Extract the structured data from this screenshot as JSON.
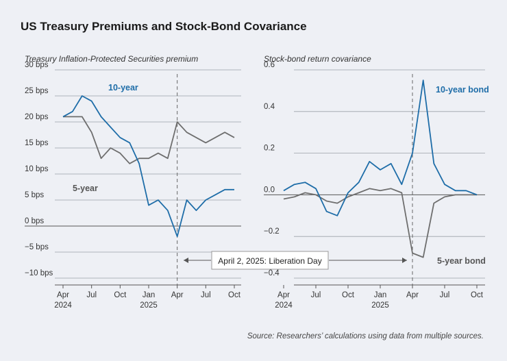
{
  "title": "US Treasury Premiums and Stock-Bond Covariance",
  "source": "Source: Researchers’ calculations using data from multiple sources.",
  "annotation": "April 2, 2025: Liberation Day",
  "colors": {
    "ten_year": "#1e6da8",
    "five_year": "#6e6e6e",
    "background": "#eef0f5"
  },
  "chart_data": [
    {
      "type": "line",
      "title": "Treasury Inflation-Protected Securities premium",
      "ylim": [
        -10,
        30
      ],
      "y_ticks": [
        -10,
        -5,
        0,
        5,
        10,
        15,
        20,
        25,
        30
      ],
      "y_tick_labels": [
        "−10 bps",
        "−5 bps",
        "0 bps",
        "5 bps",
        "10 bps",
        "15 bps",
        "20 bps",
        "25 bps",
        "30 bps"
      ],
      "x_tick_labels": [
        {
          "month": "2024-04",
          "label": "Apr",
          "year": "2024"
        },
        {
          "month": "2024-07",
          "label": "Jul",
          "year": ""
        },
        {
          "month": "2024-10",
          "label": "Oct",
          "year": ""
        },
        {
          "month": "2025-01",
          "label": "Jan",
          "year": "2025"
        },
        {
          "month": "2025-04",
          "label": "Apr",
          "year": ""
        },
        {
          "month": "2025-07",
          "label": "Jul",
          "year": ""
        },
        {
          "month": "2025-10",
          "label": "Oct",
          "year": ""
        }
      ],
      "xlim": [
        "2024-04",
        "2025-10"
      ],
      "event_month": "2025-04",
      "series": [
        {
          "name": "10-year",
          "x": [
            "2024-04",
            "2024-05",
            "2024-06",
            "2024-07",
            "2024-08",
            "2024-09",
            "2024-10",
            "2024-11",
            "2024-12",
            "2025-01",
            "2025-02",
            "2025-03",
            "2025-04",
            "2025-05",
            "2025-06",
            "2025-07",
            "2025-08",
            "2025-09",
            "2025-10"
          ],
          "values": [
            21,
            22,
            25,
            24,
            21,
            19,
            17,
            16,
            12,
            4,
            5,
            3,
            -2,
            5,
            3,
            5,
            6,
            7,
            7
          ]
        },
        {
          "name": "5-year",
          "x": [
            "2024-04",
            "2024-05",
            "2024-06",
            "2024-07",
            "2024-08",
            "2024-09",
            "2024-10",
            "2024-11",
            "2024-12",
            "2025-01",
            "2025-02",
            "2025-03",
            "2025-04",
            "2025-05",
            "2025-06",
            "2025-07",
            "2025-08",
            "2025-09",
            "2025-10"
          ],
          "values": [
            21,
            21,
            21,
            18,
            13,
            15,
            14,
            12,
            13,
            13,
            14,
            13,
            20,
            18,
            17,
            16,
            17,
            18,
            17
          ]
        }
      ]
    },
    {
      "type": "line",
      "title": "Stock-bond return covariance",
      "ylim": [
        -0.4,
        0.6
      ],
      "y_ticks": [
        -0.4,
        -0.2,
        0.0,
        0.2,
        0.4,
        0.6
      ],
      "y_tick_labels": [
        "−0.4",
        "−0.2",
        "0.0",
        "0.2",
        "0.4",
        "0.6"
      ],
      "x_tick_labels": [
        {
          "month": "2024-04",
          "label": "Apr",
          "year": "2024"
        },
        {
          "month": "2024-07",
          "label": "Jul",
          "year": ""
        },
        {
          "month": "2024-10",
          "label": "Oct",
          "year": ""
        },
        {
          "month": "2025-01",
          "label": "Jan",
          "year": "2025"
        },
        {
          "month": "2025-04",
          "label": "Apr",
          "year": ""
        },
        {
          "month": "2025-07",
          "label": "Jul",
          "year": ""
        },
        {
          "month": "2025-10",
          "label": "Oct",
          "year": ""
        }
      ],
      "xlim": [
        "2024-04",
        "2025-10"
      ],
      "event_month": "2025-04",
      "series": [
        {
          "name": "10-year bond",
          "x": [
            "2024-04",
            "2024-05",
            "2024-06",
            "2024-07",
            "2024-08",
            "2024-09",
            "2024-10",
            "2024-11",
            "2024-12",
            "2025-01",
            "2025-02",
            "2025-03",
            "2025-04",
            "2025-05",
            "2025-06",
            "2025-07",
            "2025-08",
            "2025-09",
            "2025-10"
          ],
          "values": [
            0.02,
            0.05,
            0.06,
            0.03,
            -0.08,
            -0.1,
            0.01,
            0.06,
            0.16,
            0.12,
            0.15,
            0.05,
            0.2,
            0.55,
            0.15,
            0.05,
            0.02,
            0.02,
            0.0
          ]
        },
        {
          "name": "5-year bond",
          "x": [
            "2024-04",
            "2024-05",
            "2024-06",
            "2024-07",
            "2024-08",
            "2024-09",
            "2024-10",
            "2024-11",
            "2024-12",
            "2025-01",
            "2025-02",
            "2025-03",
            "2025-04",
            "2025-05",
            "2025-06",
            "2025-07",
            "2025-08",
            "2025-09",
            "2025-10"
          ],
          "values": [
            -0.02,
            -0.01,
            0.01,
            0.0,
            -0.03,
            -0.04,
            -0.01,
            0.01,
            0.03,
            0.02,
            0.03,
            0.01,
            -0.28,
            -0.3,
            -0.04,
            -0.01,
            0.0,
            0.0,
            0.0
          ]
        }
      ]
    }
  ]
}
